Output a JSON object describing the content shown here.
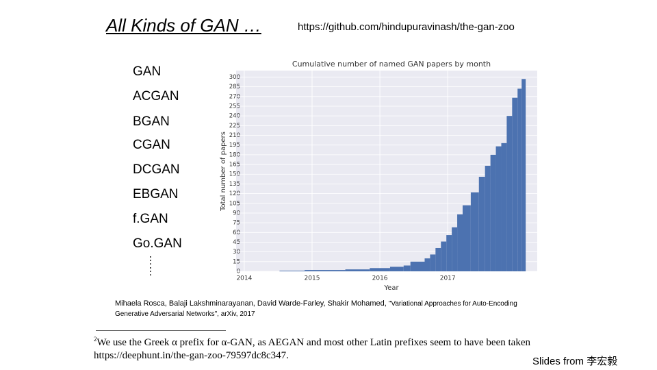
{
  "slide": {
    "heading": "All Kinds of GAN …",
    "url": "https://github.com/hindupuravinash/the-gan-zoo",
    "items": [
      "GAN",
      "ACGAN",
      "BGAN",
      "CGAN",
      "DCGAN",
      "EBGAN",
      "f.GAN",
      "Go.GAN"
    ],
    "more": "……",
    "citation_authors": "Mihaela Rosca, Balaji Lakshminarayanan, David Warde-Farley, Shakir Mohamed, ",
    "citation_paper": "\"Variational Approaches for Auto-Encoding Generative Adversarial Networks\", arXiv, 2017",
    "footnote_mark": "2",
    "footnote_text": "We use the Greek α prefix for α-GAN, as AEGAN and most other Latin prefixes seem to have been taken",
    "footnote_link": "https://deephunt.in/the-gan-zoo-79597dc8c347.",
    "credit": "Slides from 李宏毅"
  },
  "chart_data": {
    "type": "histogram",
    "title": "Cumulative number of named GAN papers by month",
    "x_label": "Year",
    "y_label": "Total number of papers",
    "bins": [
      2014.52,
      2014.89,
      2015.49,
      2015.85,
      2016.15,
      2016.35,
      2016.45,
      2016.66,
      2016.74,
      2016.82,
      2016.9,
      2016.98,
      2017.06,
      2017.14,
      2017.22,
      2017.34,
      2017.46,
      2017.55,
      2017.63,
      2017.71,
      2017.79,
      2017.87,
      2017.95,
      2018.03,
      2018.09,
      2018.15
    ],
    "values": [
      1,
      2,
      3,
      5,
      7,
      9,
      15,
      20,
      26,
      36,
      46,
      56,
      68,
      88,
      102,
      122,
      146,
      163,
      180,
      193,
      198,
      240,
      268,
      282,
      297
    ],
    "color": "#4c72b0",
    "background": "#eaeaf2",
    "xlim": [
      2013.88,
      2018.32
    ],
    "xticks": [
      2014,
      2015,
      2016,
      2017
    ],
    "ylim": [
      0,
      310
    ],
    "yticks": [
      0,
      15,
      30,
      45,
      60,
      75,
      90,
      105,
      120,
      135,
      150,
      165,
      180,
      195,
      210,
      225,
      240,
      255,
      270,
      285,
      300
    ],
    "grid": true
  }
}
